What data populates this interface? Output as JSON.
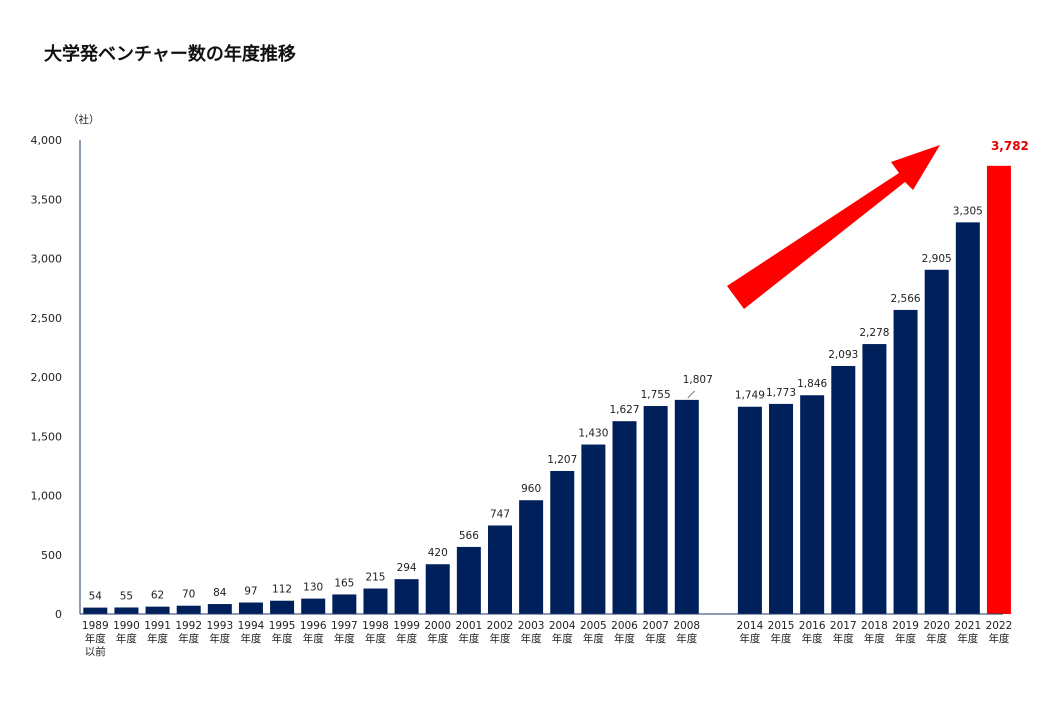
{
  "chart_data": {
    "type": "bar",
    "title": "大学発ベンチャー数の年度推移",
    "ylabel": "（社）",
    "xlabel": "",
    "ylim": [
      0,
      4000
    ],
    "yticks": [
      "0",
      "500",
      "1,000",
      "1,500",
      "2,000",
      "2,500",
      "3,000",
      "3,500",
      "4,000"
    ],
    "grid": false,
    "legend": "none",
    "categories": [
      [
        "1989",
        "年度",
        "以前"
      ],
      [
        "1990",
        "年度"
      ],
      [
        "1991",
        "年度"
      ],
      [
        "1992",
        "年度"
      ],
      [
        "1993",
        "年度"
      ],
      [
        "1994",
        "年度"
      ],
      [
        "1995",
        "年度"
      ],
      [
        "1996",
        "年度"
      ],
      [
        "1997",
        "年度"
      ],
      [
        "1998",
        "年度"
      ],
      [
        "1999",
        "年度"
      ],
      [
        "2000",
        "年度"
      ],
      [
        "2001",
        "年度"
      ],
      [
        "2002",
        "年度"
      ],
      [
        "2003",
        "年度"
      ],
      [
        "2004",
        "年度"
      ],
      [
        "2005",
        "年度"
      ],
      [
        "2006",
        "年度"
      ],
      [
        "2007",
        "年度"
      ],
      [
        "2008",
        "年度"
      ],
      [
        "2014",
        "年度"
      ],
      [
        "2015",
        "年度"
      ],
      [
        "2016",
        "年度"
      ],
      [
        "2017",
        "年度"
      ],
      [
        "2018",
        "年度"
      ],
      [
        "2019",
        "年度"
      ],
      [
        "2020",
        "年度"
      ],
      [
        "2021",
        "年度"
      ],
      [
        "2022",
        "年度"
      ]
    ],
    "values": [
      54,
      55,
      62,
      70,
      84,
      97,
      112,
      130,
      165,
      215,
      294,
      420,
      566,
      747,
      960,
      1207,
      1430,
      1627,
      1755,
      1807,
      1749,
      1773,
      1846,
      2093,
      2278,
      2566,
      2905,
      3305,
      3782
    ],
    "labels": [
      "54",
      "55",
      "62",
      "70",
      "84",
      "97",
      "112",
      "130",
      "165",
      "215",
      "294",
      "420",
      "566",
      "747",
      "960",
      "1,207",
      "1,430",
      "1,627",
      "1,755",
      "1,807",
      "1,749",
      "1,773",
      "1,846",
      "2,093",
      "2,278",
      "2,566",
      "2,905",
      "3,305",
      "3,782"
    ],
    "highlight_index": 28,
    "gap_after_index": 19
  },
  "colors": {
    "bar": "#00205b",
    "highlight": "#ff0000",
    "highlight_label": "#e60000",
    "arrow": "#ff0000",
    "axis": "#1f3864"
  }
}
